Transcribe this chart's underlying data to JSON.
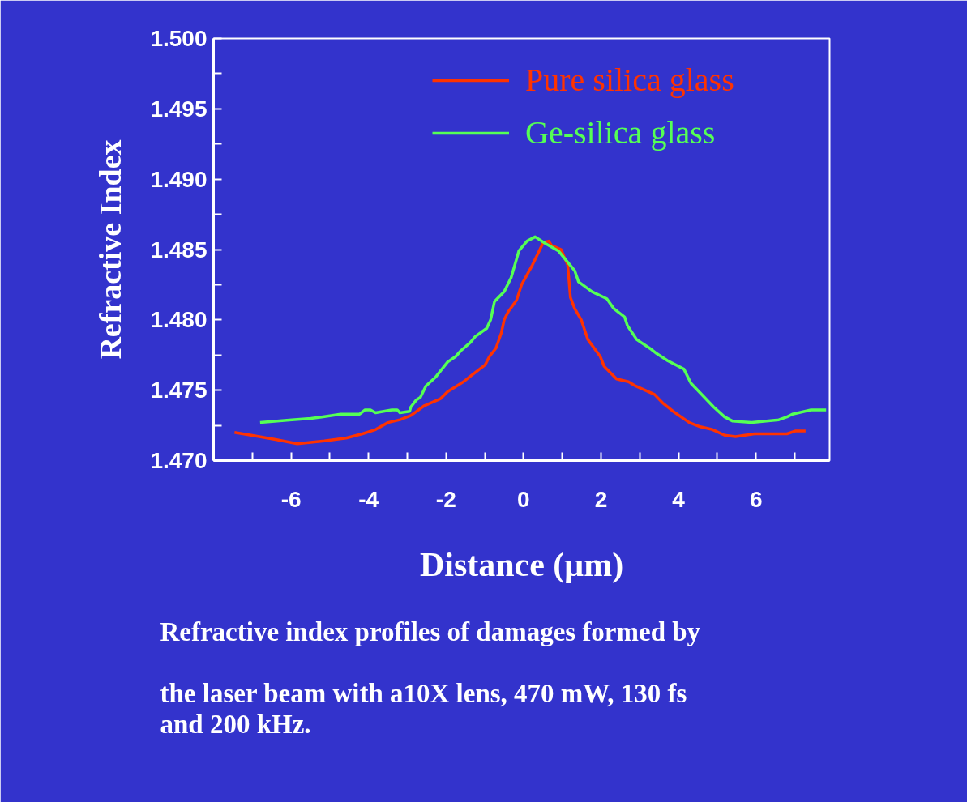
{
  "chart_data": {
    "type": "line",
    "xlabel": "Distance (μm)",
    "ylabel": "Refractive Index",
    "xlim": [
      -8,
      7.9
    ],
    "ylim": [
      1.47,
      1.5
    ],
    "xticks": [
      {
        "value": -7,
        "label": null
      },
      -6,
      {
        "value": -5,
        "label": null
      },
      -4,
      {
        "value": -3,
        "label": null
      },
      -2,
      {
        "value": -1,
        "label": null
      },
      0,
      {
        "value": 1,
        "label": null
      },
      2,
      {
        "value": 3,
        "label": null
      },
      4,
      {
        "value": 5,
        "label": null
      },
      6,
      {
        "value": 7,
        "label": null
      }
    ],
    "yticks": [
      {
        "value": 1.47,
        "label": "1.470"
      },
      {
        "value": 1.4725,
        "label": null
      },
      {
        "value": 1.475,
        "label": "1.475"
      },
      {
        "value": 1.4775,
        "label": null
      },
      {
        "value": 1.48,
        "label": "1.480"
      },
      {
        "value": 1.4825,
        "label": null
      },
      {
        "value": 1.485,
        "label": "1.485"
      },
      {
        "value": 1.4875,
        "label": null
      },
      {
        "value": 1.49,
        "label": "1.490"
      },
      {
        "value": 1.4925,
        "label": null
      },
      {
        "value": 1.495,
        "label": "1.495"
      },
      {
        "value": 1.4975,
        "label": null
      },
      {
        "value": 1.5,
        "label": "1.500"
      }
    ],
    "grid": false,
    "legend": "top right",
    "line_style": "solid",
    "marker": "none",
    "series": [
      {
        "name": "Pure silica glass",
        "color": "#ff3300",
        "x": [
          -7.46,
          -7.03,
          -6.4,
          -5.84,
          -5.14,
          -4.58,
          -4.16,
          -3.82,
          -3.5,
          -3.19,
          -2.91,
          -2.56,
          -2.14,
          -1.96,
          -1.55,
          -1.37,
          -0.99,
          -0.88,
          -0.71,
          -0.57,
          -0.5,
          -0.39,
          -0.18,
          -0.05,
          0.23,
          0.51,
          0.65,
          0.72,
          0.97,
          1.14,
          1.21,
          1.32,
          1.49,
          1.66,
          1.98,
          2.08,
          2.4,
          2.71,
          2.89,
          3.38,
          3.59,
          3.86,
          4.28,
          4.56,
          4.88,
          5.19,
          5.47,
          5.96,
          6.8,
          7.01,
          7.28
        ],
        "values": [
          1.472,
          1.4718,
          1.4715,
          1.4712,
          1.4714,
          1.4716,
          1.4719,
          1.4722,
          1.4727,
          1.4729,
          1.4732,
          1.4739,
          1.4744,
          1.4749,
          1.4756,
          1.476,
          1.4768,
          1.4774,
          1.478,
          1.4791,
          1.48,
          1.4806,
          1.4814,
          1.4825,
          1.4839,
          1.4855,
          1.4856,
          1.4853,
          1.485,
          1.4839,
          1.4816,
          1.4808,
          1.48,
          1.4786,
          1.4774,
          1.4767,
          1.4758,
          1.4756,
          1.4753,
          1.4747,
          1.4741,
          1.4735,
          1.4727,
          1.4724,
          1.4722,
          1.4718,
          1.4717,
          1.4719,
          1.4719,
          1.4721,
          1.4721
        ]
      },
      {
        "name": "Ge-silica glass",
        "color": "#55ff55",
        "x": [
          -6.8,
          -5.98,
          -5.49,
          -5.21,
          -4.72,
          -4.23,
          -4.09,
          -3.95,
          -3.82,
          -3.4,
          -3.26,
          -3.19,
          -2.94,
          -2.91,
          -2.77,
          -2.66,
          -2.52,
          -2.28,
          -1.96,
          -1.75,
          -1.62,
          -1.37,
          -1.25,
          -0.95,
          -0.85,
          -0.75,
          -0.5,
          -0.32,
          -0.12,
          0.09,
          0.3,
          0.58,
          0.9,
          1.32,
          1.42,
          1.77,
          2.15,
          2.33,
          2.61,
          2.68,
          2.92,
          3.3,
          3.44,
          3.72,
          4.14,
          4.32,
          4.91,
          5.19,
          5.4,
          5.89,
          6.59,
          6.8,
          6.94,
          7.42,
          7.81
        ],
        "values": [
          1.4727,
          1.4729,
          1.473,
          1.4731,
          1.4733,
          1.4733,
          1.4736,
          1.4736,
          1.4734,
          1.4736,
          1.4736,
          1.4734,
          1.4735,
          1.4738,
          1.4743,
          1.4745,
          1.4753,
          1.4759,
          1.477,
          1.4774,
          1.4778,
          1.4784,
          1.4788,
          1.4794,
          1.48,
          1.4813,
          1.482,
          1.483,
          1.4849,
          1.4856,
          1.4859,
          1.4854,
          1.4849,
          1.4835,
          1.4827,
          1.482,
          1.4815,
          1.4808,
          1.4802,
          1.4796,
          1.4786,
          1.4779,
          1.4776,
          1.4771,
          1.4765,
          1.4755,
          1.4738,
          1.4731,
          1.4728,
          1.4727,
          1.4729,
          1.4731,
          1.4733,
          1.4736,
          1.4736
        ]
      }
    ],
    "annotations": [
      "Refractive index profiles of damages formed by the laser beam with a10X lens, 470 mW, 130 fs and 200 kHz."
    ]
  }
}
